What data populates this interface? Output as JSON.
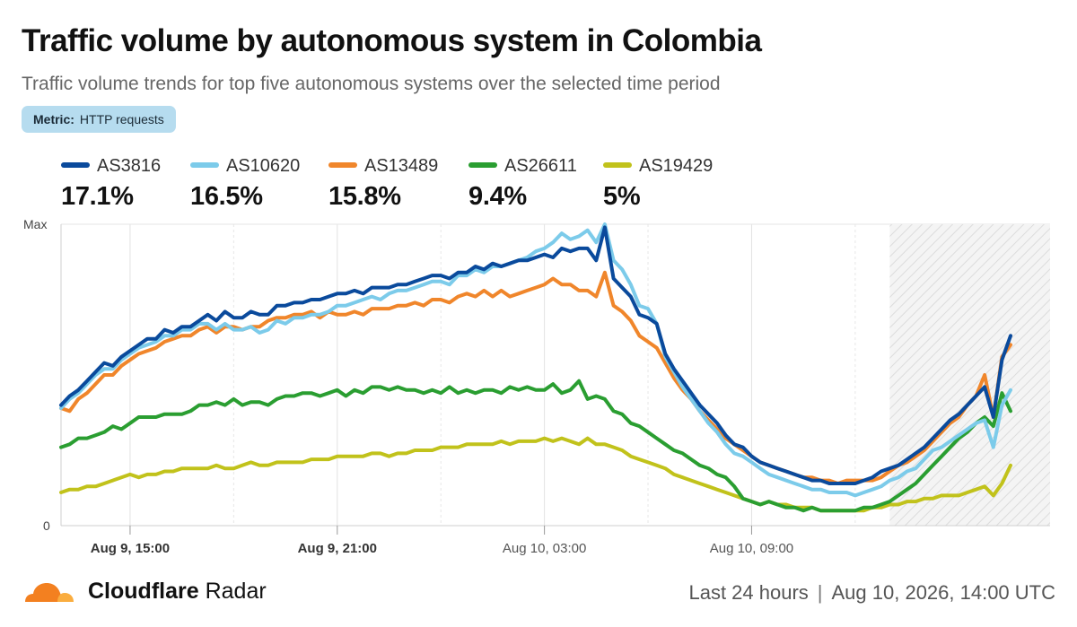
{
  "header": {
    "title": "Traffic volume by autonomous system in Colombia",
    "subtitle": "Traffic volume trends for top five autonomous systems over the selected time period",
    "metric_key": "Metric:",
    "metric_value": "HTTP requests"
  },
  "legend": [
    {
      "name": "AS3816",
      "share": "17.1%",
      "color": "#0a4a9c"
    },
    {
      "name": "AS10620",
      "share": "16.5%",
      "color": "#7ccbea"
    },
    {
      "name": "AS13489",
      "share": "15.8%",
      "color": "#f0862b"
    },
    {
      "name": "AS26611",
      "share": "9.4%",
      "color": "#2a9e31"
    },
    {
      "name": "AS19429",
      "share": "5%",
      "color": "#c1c21b"
    }
  ],
  "footer": {
    "brand_part1": "Cloudflare",
    "brand_part2": "Radar",
    "range": "Last 24 hours",
    "separator": "|",
    "timestamp": "Aug 10, 2026, 14:00 UTC"
  },
  "chart_data": {
    "type": "line",
    "y_tick_labels": {
      "max": "Max",
      "min": "0"
    },
    "ylim": [
      0,
      100
    ],
    "x_start": "2026-08-09 13:00",
    "x_step_minutes": 15,
    "x_ticks": [
      {
        "label": "Aug 9, 15:00",
        "time": "2026-08-09 15:00",
        "bold": true
      },
      {
        "label": "Aug 9, 21:00",
        "time": "2026-08-09 21:00",
        "bold": true
      },
      {
        "label": "Aug 10, 03:00",
        "time": "2026-08-10 03:00",
        "bold": false
      },
      {
        "label": "Aug 10, 09:00",
        "time": "2026-08-10 09:00",
        "bold": false
      }
    ],
    "incomplete_region_start": "2026-08-10 13:00",
    "grid": true,
    "series": [
      {
        "name": "AS3816",
        "color": "#0a4a9c",
        "values": [
          40,
          43,
          45,
          48,
          51,
          54,
          53,
          56,
          58,
          60,
          62,
          62,
          65,
          64,
          66,
          66,
          68,
          70,
          68,
          71,
          69,
          69,
          71,
          70,
          70,
          73,
          73,
          74,
          74,
          75,
          75,
          76,
          77,
          77,
          78,
          77,
          79,
          79,
          79,
          80,
          80,
          81,
          82,
          83,
          83,
          82,
          84,
          84,
          86,
          85,
          87,
          86,
          87,
          88,
          88,
          89,
          90,
          89,
          92,
          91,
          92,
          92,
          88,
          99,
          82,
          79,
          76,
          70,
          69,
          67,
          57,
          52,
          48,
          44,
          40,
          37,
          34,
          30,
          27,
          26,
          23,
          21,
          20,
          19,
          18,
          17,
          16,
          15,
          15,
          14,
          14,
          14,
          14,
          15,
          16,
          18,
          19,
          20,
          22,
          24,
          26,
          29,
          32,
          35,
          37,
          40,
          43,
          46,
          36,
          55,
          63
        ]
      },
      {
        "name": "AS10620",
        "color": "#7ccbea",
        "values": [
          39,
          42,
          44,
          47,
          50,
          52,
          52,
          55,
          57,
          59,
          60,
          61,
          63,
          63,
          65,
          65,
          67,
          67,
          65,
          67,
          65,
          65,
          66,
          64,
          65,
          68,
          67,
          69,
          69,
          70,
          70,
          71,
          73,
          73,
          74,
          75,
          76,
          75,
          77,
          78,
          78,
          79,
          80,
          81,
          81,
          80,
          83,
          83,
          85,
          84,
          86,
          86,
          87,
          88,
          89,
          91,
          92,
          94,
          97,
          95,
          96,
          98,
          94,
          100,
          88,
          85,
          80,
          73,
          72,
          67,
          56,
          51,
          46,
          42,
          38,
          34,
          31,
          27,
          24,
          23,
          21,
          19,
          17,
          16,
          15,
          14,
          13,
          12,
          12,
          11,
          11,
          11,
          10,
          11,
          12,
          13,
          15,
          16,
          18,
          19,
          22,
          25,
          26,
          28,
          30,
          32,
          34,
          35,
          26,
          40,
          45
        ]
      },
      {
        "name": "AS13489",
        "color": "#f0862b",
        "values": [
          39,
          38,
          42,
          44,
          47,
          50,
          50,
          53,
          55,
          57,
          58,
          59,
          61,
          62,
          63,
          63,
          65,
          66,
          64,
          66,
          66,
          65,
          66,
          66,
          68,
          69,
          69,
          70,
          70,
          71,
          69,
          71,
          70,
          70,
          71,
          70,
          72,
          72,
          72,
          73,
          73,
          74,
          73,
          75,
          75,
          74,
          76,
          77,
          76,
          78,
          76,
          78,
          76,
          77,
          78,
          79,
          80,
          82,
          80,
          80,
          78,
          78,
          76,
          84,
          73,
          71,
          68,
          63,
          61,
          59,
          54,
          49,
          45,
          42,
          38,
          35,
          32,
          29,
          27,
          25,
          23,
          21,
          20,
          19,
          18,
          17,
          16,
          16,
          15,
          15,
          14,
          15,
          15,
          15,
          15,
          16,
          18,
          20,
          21,
          23,
          25,
          28,
          31,
          34,
          36,
          40,
          43,
          50,
          36,
          56,
          60
        ]
      },
      {
        "name": "AS26611",
        "color": "#2a9e31",
        "values": [
          26,
          27,
          29,
          29,
          30,
          31,
          33,
          32,
          34,
          36,
          36,
          36,
          37,
          37,
          37,
          38,
          40,
          40,
          41,
          40,
          42,
          40,
          41,
          41,
          40,
          42,
          43,
          43,
          44,
          44,
          43,
          44,
          45,
          43,
          45,
          44,
          46,
          46,
          45,
          46,
          45,
          45,
          44,
          45,
          44,
          46,
          44,
          45,
          44,
          45,
          45,
          44,
          46,
          45,
          46,
          45,
          45,
          47,
          44,
          45,
          48,
          42,
          43,
          42,
          38,
          37,
          34,
          33,
          31,
          29,
          27,
          25,
          24,
          22,
          20,
          19,
          17,
          16,
          13,
          9,
          8,
          7,
          8,
          7,
          6,
          6,
          5,
          6,
          5,
          5,
          5,
          5,
          5,
          6,
          6,
          7,
          8,
          10,
          12,
          14,
          17,
          20,
          23,
          26,
          29,
          31,
          34,
          36,
          33,
          44,
          38
        ]
      },
      {
        "name": "AS19429",
        "color": "#c1c21b",
        "values": [
          11,
          12,
          12,
          13,
          13,
          14,
          15,
          16,
          17,
          16,
          17,
          17,
          18,
          18,
          19,
          19,
          19,
          19,
          20,
          19,
          19,
          20,
          21,
          20,
          20,
          21,
          21,
          21,
          21,
          22,
          22,
          22,
          23,
          23,
          23,
          23,
          24,
          24,
          23,
          24,
          24,
          25,
          25,
          25,
          26,
          26,
          26,
          27,
          27,
          27,
          27,
          28,
          27,
          28,
          28,
          28,
          29,
          28,
          29,
          28,
          27,
          29,
          27,
          27,
          26,
          25,
          23,
          22,
          21,
          20,
          19,
          17,
          16,
          15,
          14,
          13,
          12,
          11,
          10,
          9,
          8,
          7,
          8,
          7,
          7,
          6,
          6,
          6,
          5,
          5,
          5,
          5,
          5,
          5,
          6,
          6,
          7,
          7,
          8,
          8,
          9,
          9,
          10,
          10,
          10,
          11,
          12,
          13,
          10,
          14,
          20
        ]
      }
    ]
  }
}
